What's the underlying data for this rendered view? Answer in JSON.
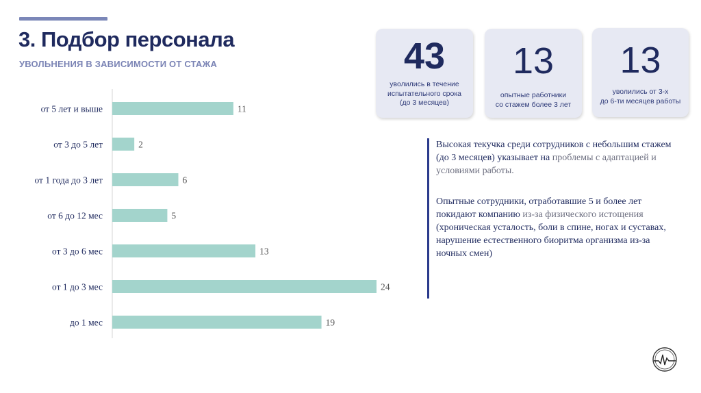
{
  "header": {
    "title": "3. Подбор персонала",
    "subtitle": "УВОЛЬНЕНИЯ В ЗАВИСИМОСТИ ОТ СТАЖА"
  },
  "cards": [
    {
      "number": "43",
      "desc_lines": [
        "уволились в течение",
        "испытательного срока",
        "(до 3 месяцев)"
      ]
    },
    {
      "number": "13",
      "desc_lines": [
        "опытные работники",
        "со стажем более 3 лет"
      ]
    },
    {
      "number": "13",
      "desc_lines": [
        "уволились от 3-х",
        "до 6-ти месяцев работы"
      ]
    }
  ],
  "text_block": {
    "p1_main": "Высокая текучка среди сотрудников с небольшим стажем (до 3 месяцев) указывает на ",
    "p1_muted": "проблемы с адаптацией и условиями работы.",
    "p2_main": "Опытные сотрудники, отработавшие 5 и более лет покидают компанию ",
    "p2_muted": "из-за физического истощения",
    "p2_tail": "(хроническая усталость, боли в спине, ногах и суставах, нарушение естественного биоритма организма из-за ночных смен)"
  },
  "colors": {
    "bar": "#a3d4cc",
    "title": "#1f2a5e",
    "subtitle": "#7b84b5",
    "card_bg": "#e7e9f3",
    "accent": "#2b3a8c"
  },
  "logo_icon": "heartbeat-circle-icon",
  "chart_data": {
    "type": "bar",
    "orientation": "horizontal",
    "categories": [
      "от 5 лет и выше",
      "от 3 до 5 лет",
      "от 1 года до 3 лет",
      "от 6 до 12 мес",
      "от 3 до 6 мес",
      "от 1 до 3 мес",
      "до 1 мес"
    ],
    "values": [
      11,
      2,
      6,
      5,
      13,
      24,
      19
    ],
    "data_labels": true,
    "xlim": [
      0,
      24
    ],
    "grid": false
  }
}
